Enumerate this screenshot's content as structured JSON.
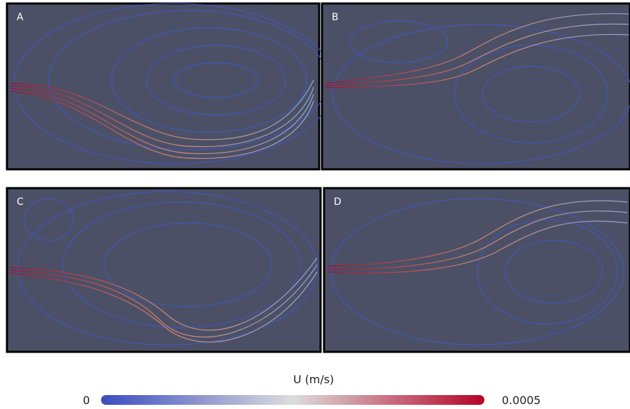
{
  "panels": [
    {
      "label": "A"
    },
    {
      "label": "B"
    },
    {
      "label": "C"
    },
    {
      "label": "D"
    }
  ],
  "colorbar": {
    "title": "U (m/s)",
    "min": 0,
    "max": 0.0005
  }
}
